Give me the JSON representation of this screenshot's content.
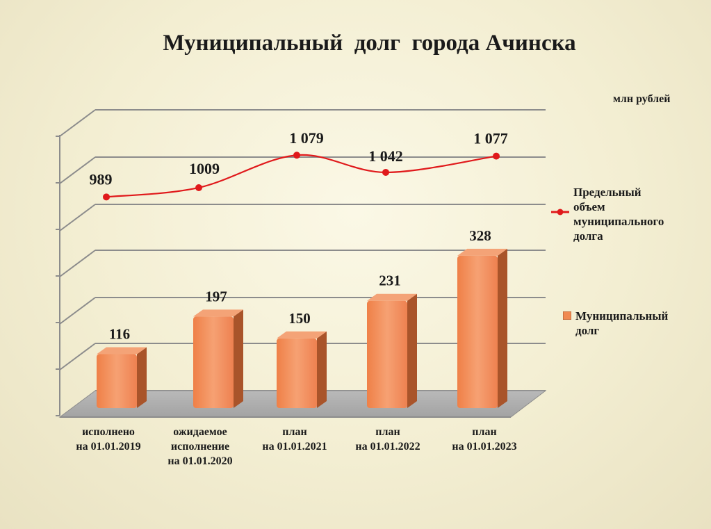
{
  "title": "Муниципальный  долг  города Ачинска",
  "unit": "млн рублей",
  "chart_data": {
    "type": "bar",
    "categories": [
      [
        "исполнено",
        "на 01.01.2019"
      ],
      [
        "ожидаемое",
        "исполнение",
        "на 01.01.2020"
      ],
      [
        "план",
        "на 01.01.2021"
      ],
      [
        "план",
        "на 01.01.2022"
      ],
      [
        "план",
        "на 01.01.2023"
      ]
    ],
    "series": [
      {
        "name": "Муниципальный долг",
        "type": "bar",
        "values": [
          116,
          197,
          150,
          231,
          328
        ],
        "labels": [
          "116",
          "197",
          "150",
          "231",
          "328"
        ],
        "color": "#f08a52"
      },
      {
        "name": "Предельный объем муниципального долга",
        "type": "line",
        "values": [
          989,
          1009,
          1079,
          1042,
          1077
        ],
        "labels": [
          "989",
          "1009",
          "1 079",
          "1 042",
          "1 077"
        ],
        "color": "#e0191b"
      }
    ],
    "legend": "right",
    "grid": true
  },
  "legend_labels": {
    "line": "Предельный\nобъем\nмуниципального\nдолга",
    "bar": "Муниципальный\nдолг"
  }
}
